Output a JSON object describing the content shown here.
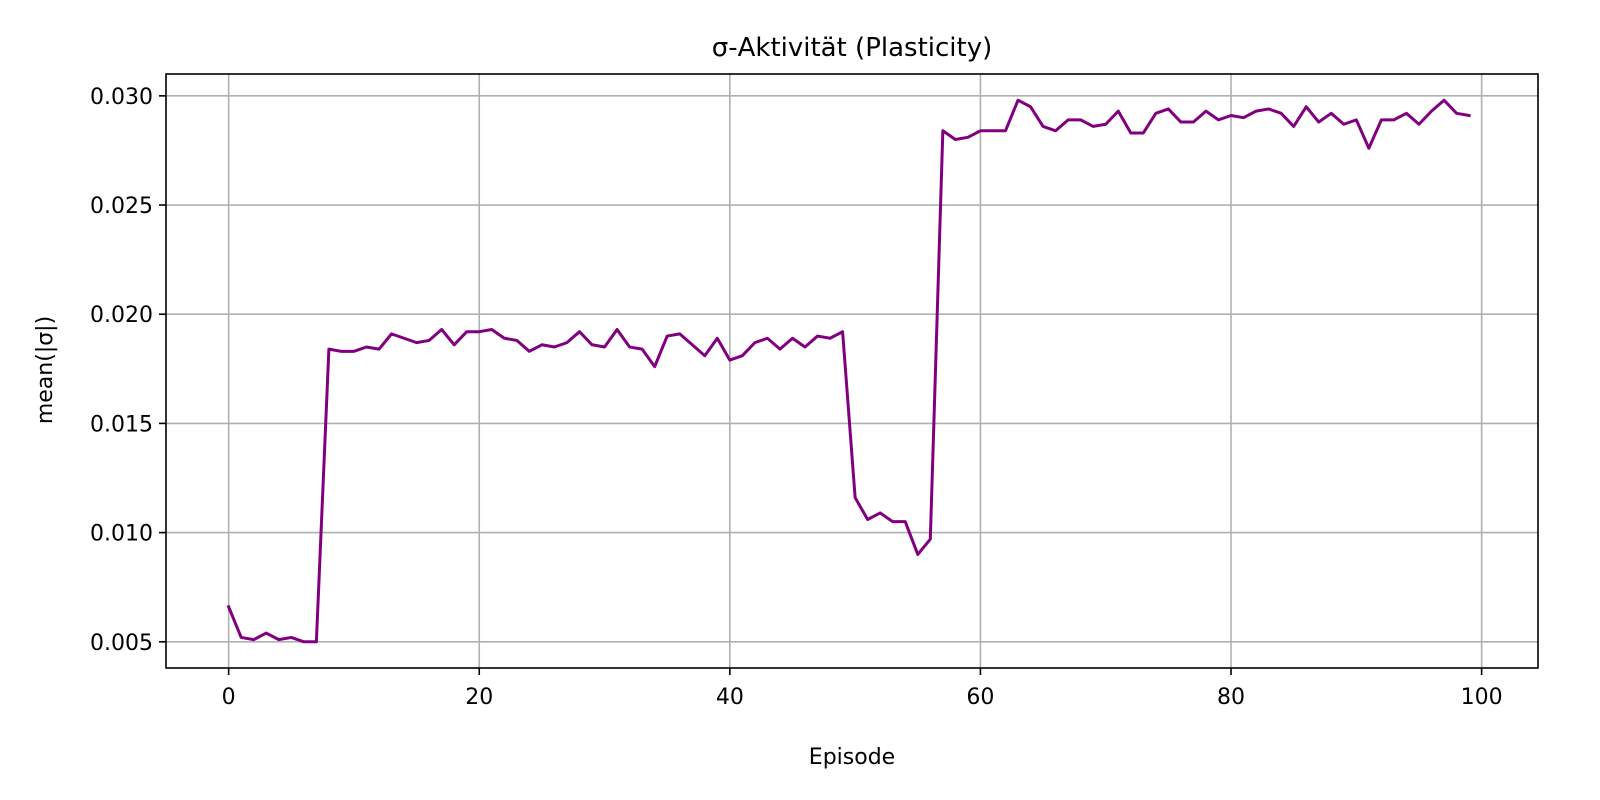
{
  "chart_data": {
    "type": "line",
    "title": "σ-Aktivität (Plasticity)",
    "xlabel": "Episode",
    "ylabel": "mean(|σ|)",
    "xlim": [
      -5,
      104.5
    ],
    "ylim": [
      0.0038,
      0.031
    ],
    "xticks": [
      0,
      20,
      40,
      60,
      80,
      100
    ],
    "xtick_labels": [
      "0",
      "20",
      "40",
      "60",
      "80",
      "100"
    ],
    "yticks": [
      0.005,
      0.01,
      0.015,
      0.02,
      0.025,
      0.03
    ],
    "ytick_labels": [
      "0.005",
      "0.010",
      "0.015",
      "0.020",
      "0.025",
      "0.030"
    ],
    "grid": true,
    "legend": "none",
    "series": [
      {
        "color": "#800080",
        "x": [
          0,
          1,
          2,
          3,
          4,
          5,
          6,
          7,
          8,
          9,
          10,
          11,
          12,
          13,
          14,
          15,
          16,
          17,
          18,
          19,
          20,
          21,
          22,
          23,
          24,
          25,
          26,
          27,
          28,
          29,
          30,
          31,
          32,
          33,
          34,
          35,
          36,
          37,
          38,
          39,
          40,
          41,
          42,
          43,
          44,
          45,
          46,
          47,
          48,
          49,
          50,
          51,
          52,
          53,
          54,
          55,
          56,
          57,
          58,
          59,
          60,
          61,
          62,
          63,
          64,
          65,
          66,
          67,
          68,
          69,
          70,
          71,
          72,
          73,
          74,
          75,
          76,
          77,
          78,
          79,
          80,
          81,
          82,
          83,
          84,
          85,
          86,
          87,
          88,
          89,
          90,
          91,
          92,
          93,
          94,
          95,
          96,
          97,
          98,
          99
        ],
        "y": [
          0.0066,
          0.0052,
          0.0051,
          0.0054,
          0.0051,
          0.0052,
          0.005,
          0.005,
          0.0184,
          0.0183,
          0.0183,
          0.0185,
          0.0184,
          0.0191,
          0.0189,
          0.0187,
          0.0188,
          0.0193,
          0.0186,
          0.0192,
          0.0192,
          0.0193,
          0.0189,
          0.0188,
          0.0183,
          0.0186,
          0.0185,
          0.0187,
          0.0192,
          0.0186,
          0.0185,
          0.0193,
          0.0185,
          0.0184,
          0.0176,
          0.019,
          0.0191,
          0.0186,
          0.0181,
          0.0189,
          0.0179,
          0.0181,
          0.0187,
          0.0189,
          0.0184,
          0.0189,
          0.0185,
          0.019,
          0.0189,
          0.0192,
          0.0116,
          0.0106,
          0.0109,
          0.0105,
          0.0105,
          0.009,
          0.0097,
          0.0284,
          0.028,
          0.0281,
          0.0284,
          0.0284,
          0.0284,
          0.0298,
          0.0295,
          0.0286,
          0.0284,
          0.0289,
          0.0289,
          0.0286,
          0.0287,
          0.0293,
          0.0283,
          0.0283,
          0.0292,
          0.0294,
          0.0288,
          0.0288,
          0.0293,
          0.0289,
          0.0291,
          0.029,
          0.0293,
          0.0294,
          0.0292,
          0.0286,
          0.0295,
          0.0288,
          0.0292,
          0.0287,
          0.0289,
          0.0276,
          0.0289,
          0.0289,
          0.0292,
          0.0287,
          0.0293,
          0.0298,
          0.0292,
          0.0291
        ]
      }
    ]
  }
}
